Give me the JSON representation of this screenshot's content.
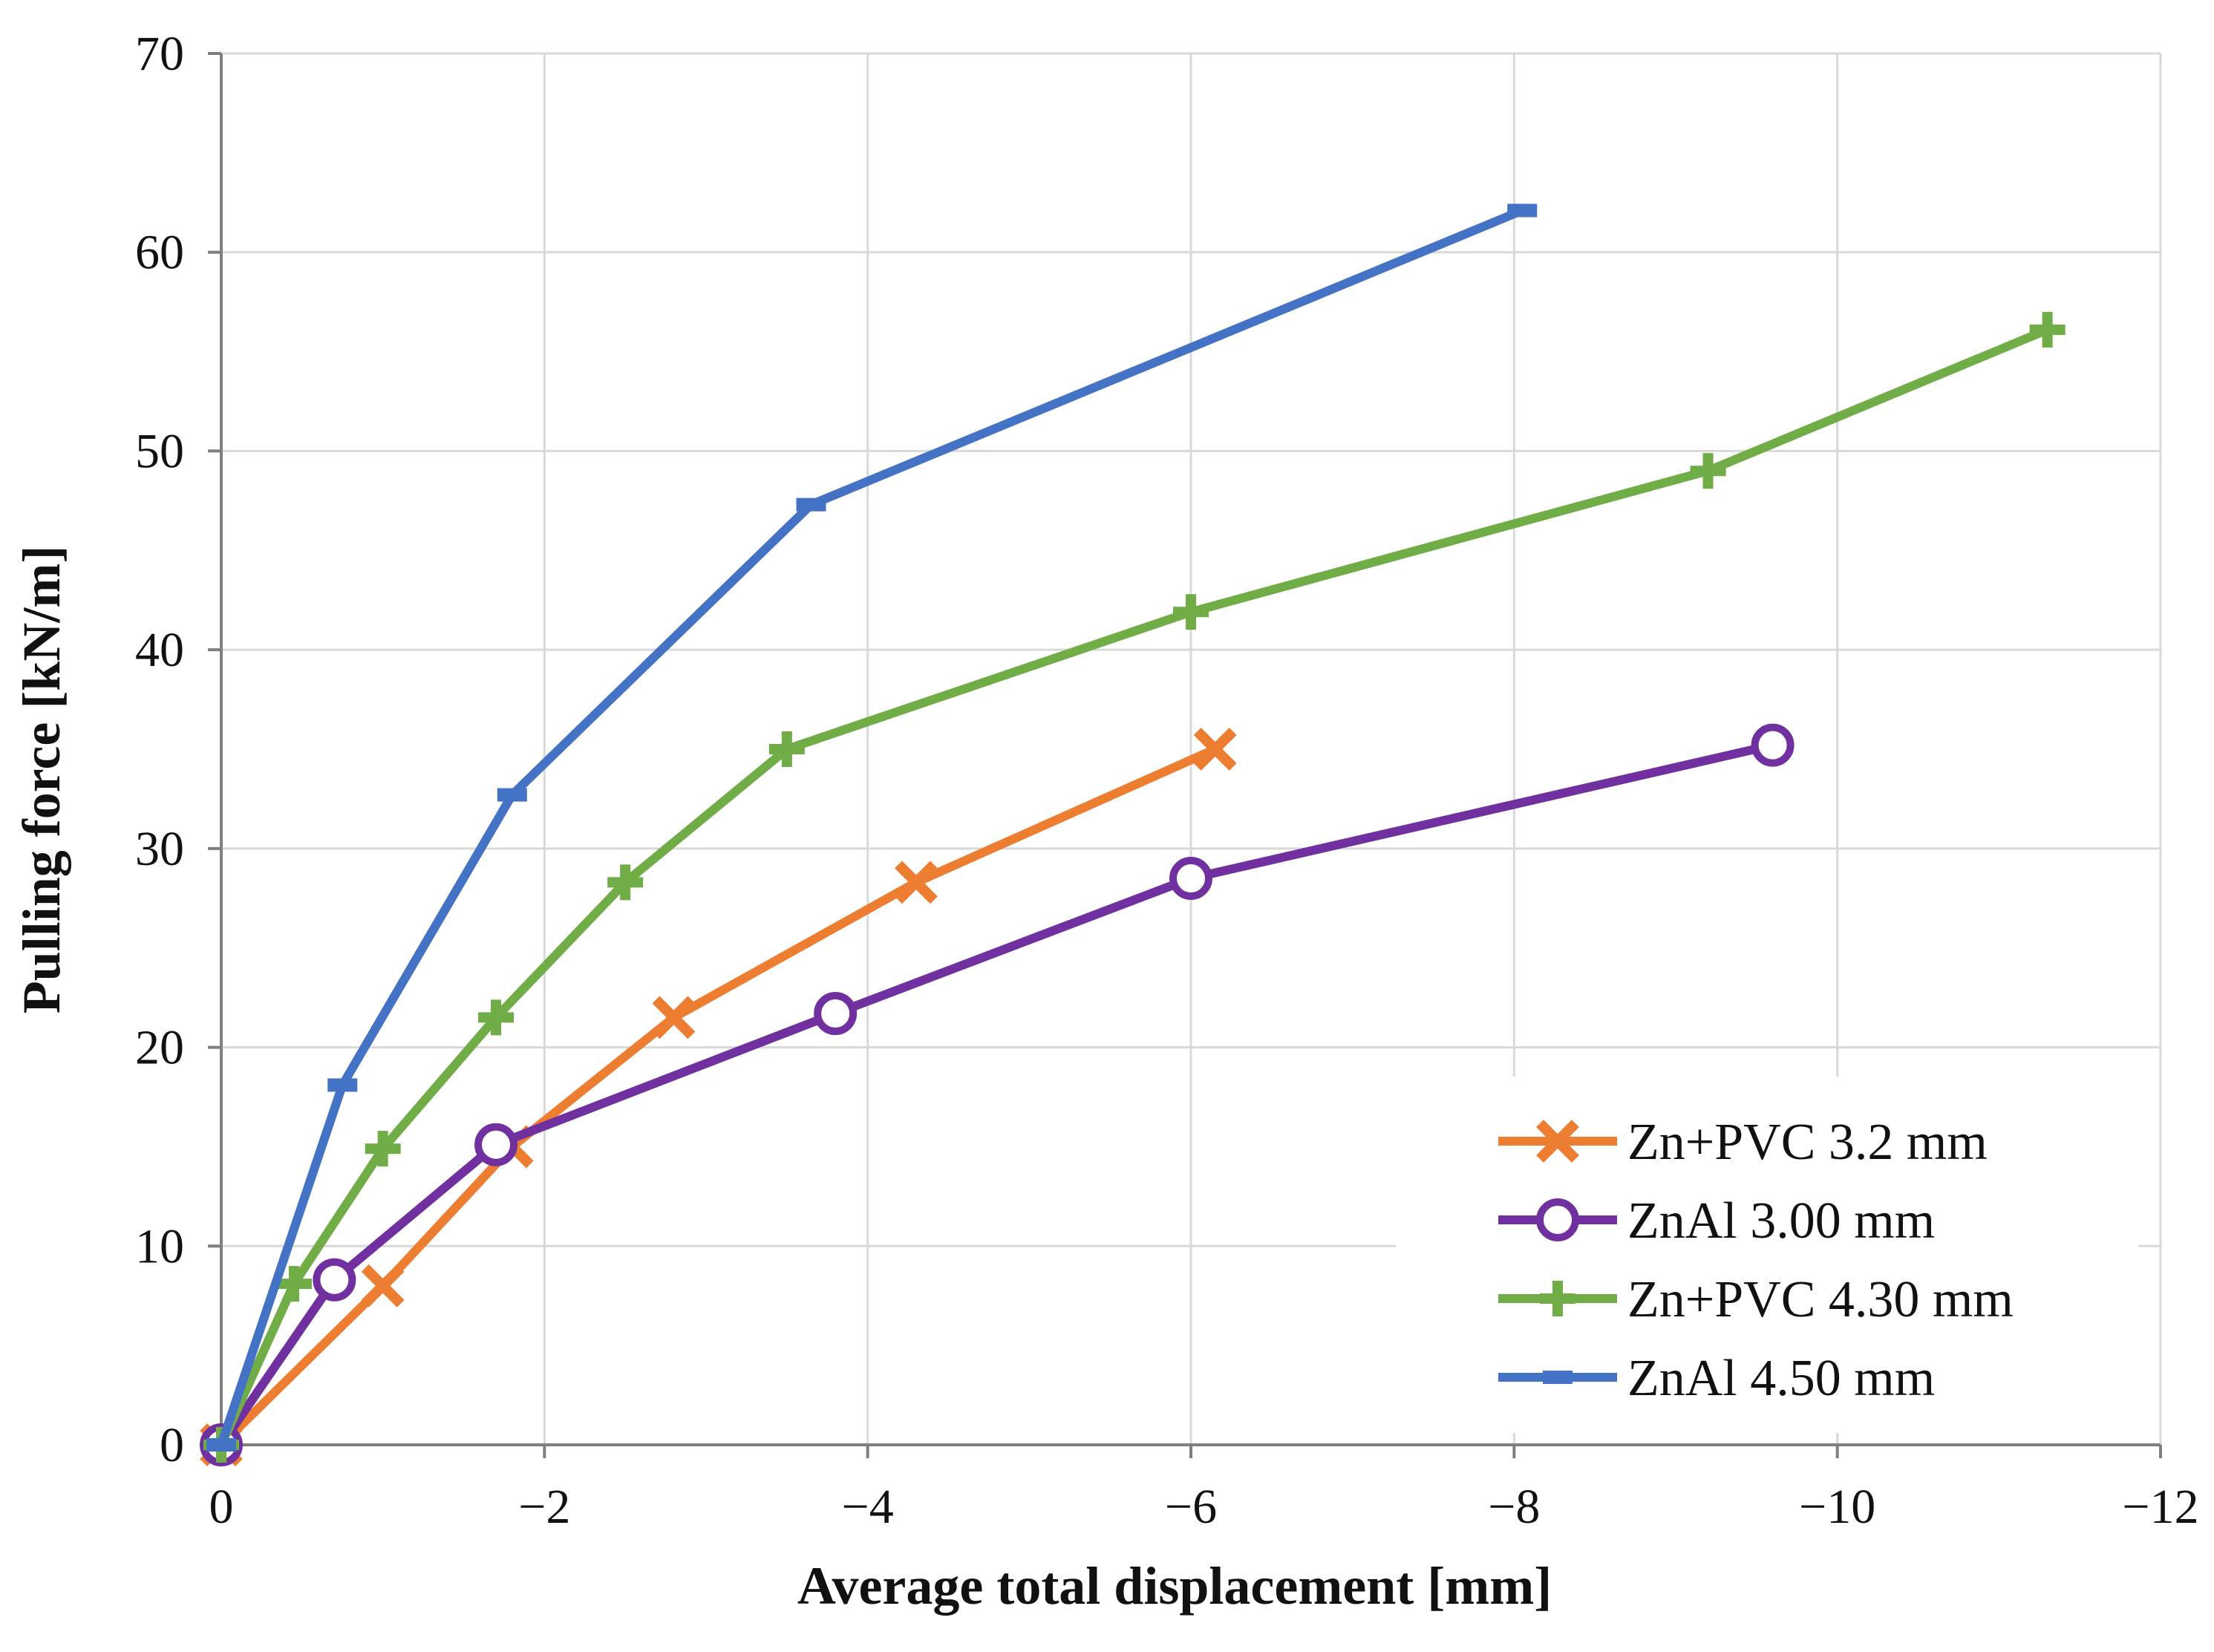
{
  "chart_data": {
    "type": "line",
    "title": "",
    "xlabel": "Average total displacement [mm]",
    "ylabel": "Pulling force [kN/m]",
    "xlim": [
      0,
      -12
    ],
    "ylim": [
      0,
      70
    ],
    "grid": true,
    "legend_position": "bottom-right",
    "x_ticks": [
      0,
      -2,
      -4,
      -6,
      -8,
      -10,
      -12
    ],
    "x_tick_labels": [
      "0",
      "−2",
      "−4",
      "−6",
      "−8",
      "−10",
      "−12"
    ],
    "y_ticks": [
      0,
      10,
      20,
      30,
      40,
      50,
      60,
      70
    ],
    "y_tick_labels": [
      "0",
      "10",
      "20",
      "30",
      "40",
      "50",
      "60",
      "70"
    ],
    "series": [
      {
        "name": "Zn+PVC 3.2 mm",
        "color": "#ED7D31",
        "marker": "x",
        "points": [
          [
            0,
            0
          ],
          [
            -1.0,
            8.0
          ],
          [
            -1.8,
            15.0
          ],
          [
            -2.8,
            21.5
          ],
          [
            -4.3,
            28.3
          ],
          [
            -6.15,
            35.0
          ]
        ]
      },
      {
        "name": "ZnAl 3.00 mm",
        "color": "#7030A0",
        "marker": "circle",
        "points": [
          [
            0,
            0
          ],
          [
            -0.7,
            8.3
          ],
          [
            -1.7,
            15.1
          ],
          [
            -3.8,
            21.7
          ],
          [
            -6.0,
            28.5
          ],
          [
            -9.6,
            35.2
          ]
        ]
      },
      {
        "name": "Zn+PVC 4.30 mm",
        "color": "#70AD47",
        "marker": "plus",
        "points": [
          [
            0,
            0
          ],
          [
            -0.45,
            8.1
          ],
          [
            -1.0,
            14.9
          ],
          [
            -1.7,
            21.5
          ],
          [
            -2.5,
            28.3
          ],
          [
            -3.5,
            35.0
          ],
          [
            -6.0,
            41.9
          ],
          [
            -9.2,
            49.0
          ],
          [
            -11.3,
            56.1
          ]
        ]
      },
      {
        "name": "ZnAl 4.50 mm",
        "color": "#4472C4",
        "marker": "dash",
        "points": [
          [
            0,
            0
          ],
          [
            -0.75,
            18.1
          ],
          [
            -1.8,
            32.7
          ],
          [
            -3.65,
            47.3
          ],
          [
            -8.05,
            62.1
          ]
        ]
      }
    ]
  }
}
